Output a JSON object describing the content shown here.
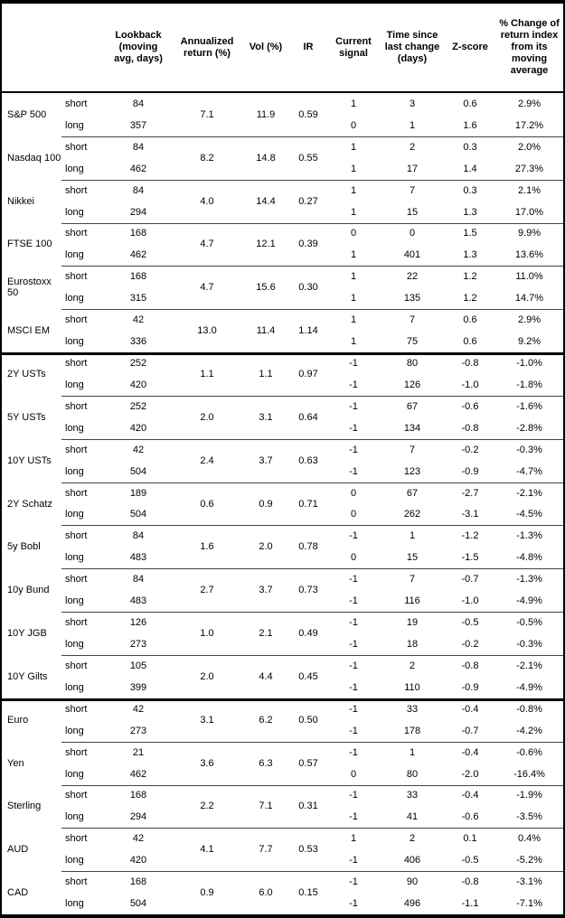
{
  "table": {
    "header": {
      "lookback": "Lookback\n(moving\navg, days)",
      "annualized_return": "Annualized\nreturn (%)",
      "vol": "Vol (%)",
      "ir": "IR",
      "current_signal": "Current\nsignal",
      "time_since": "Time since\nlast change\n(days)",
      "z_score": "Z-score",
      "pct_change": "% Change of\nreturn index\nfrom its\nmoving\naverage"
    },
    "position_labels": {
      "short": "short",
      "long": "long"
    },
    "rows": [
      {
        "name": "S&P 500",
        "section_start": false,
        "annualized_return": "7.1",
        "vol": "11.9",
        "ir": "0.59",
        "short": {
          "lookback": "84",
          "signal": "1",
          "time_since": "3",
          "z_score": "0.6",
          "pct_change": "2.9%"
        },
        "long": {
          "lookback": "357",
          "signal": "0",
          "time_since": "1",
          "z_score": "1.6",
          "pct_change": "17.2%"
        }
      },
      {
        "name": "Nasdaq 100",
        "section_start": false,
        "annualized_return": "8.2",
        "vol": "14.8",
        "ir": "0.55",
        "short": {
          "lookback": "84",
          "signal": "1",
          "time_since": "2",
          "z_score": "0.3",
          "pct_change": "2.0%"
        },
        "long": {
          "lookback": "462",
          "signal": "1",
          "time_since": "17",
          "z_score": "1.4",
          "pct_change": "27.3%"
        }
      },
      {
        "name": "Nikkei",
        "section_start": false,
        "annualized_return": "4.0",
        "vol": "14.4",
        "ir": "0.27",
        "short": {
          "lookback": "84",
          "signal": "1",
          "time_since": "7",
          "z_score": "0.3",
          "pct_change": "2.1%"
        },
        "long": {
          "lookback": "294",
          "signal": "1",
          "time_since": "15",
          "z_score": "1.3",
          "pct_change": "17.0%"
        }
      },
      {
        "name": "FTSE 100",
        "section_start": false,
        "annualized_return": "4.7",
        "vol": "12.1",
        "ir": "0.39",
        "short": {
          "lookback": "168",
          "signal": "0",
          "time_since": "0",
          "z_score": "1.5",
          "pct_change": "9.9%"
        },
        "long": {
          "lookback": "462",
          "signal": "1",
          "time_since": "401",
          "z_score": "1.3",
          "pct_change": "13.6%"
        }
      },
      {
        "name": "Eurostoxx 50",
        "section_start": false,
        "annualized_return": "4.7",
        "vol": "15.6",
        "ir": "0.30",
        "short": {
          "lookback": "168",
          "signal": "1",
          "time_since": "22",
          "z_score": "1.2",
          "pct_change": "11.0%"
        },
        "long": {
          "lookback": "315",
          "signal": "1",
          "time_since": "135",
          "z_score": "1.2",
          "pct_change": "14.7%"
        }
      },
      {
        "name": "MSCI EM",
        "section_start": false,
        "annualized_return": "13.0",
        "vol": "11.4",
        "ir": "1.14",
        "short": {
          "lookback": "42",
          "signal": "1",
          "time_since": "7",
          "z_score": "0.6",
          "pct_change": "2.9%"
        },
        "long": {
          "lookback": "336",
          "signal": "1",
          "time_since": "75",
          "z_score": "0.6",
          "pct_change": "9.2%"
        }
      },
      {
        "name": "2Y USTs",
        "section_start": true,
        "annualized_return": "1.1",
        "vol": "1.1",
        "ir": "0.97",
        "short": {
          "lookback": "252",
          "signal": "-1",
          "time_since": "80",
          "z_score": "-0.8",
          "pct_change": "-1.0%"
        },
        "long": {
          "lookback": "420",
          "signal": "-1",
          "time_since": "126",
          "z_score": "-1.0",
          "pct_change": "-1.8%"
        }
      },
      {
        "name": "5Y USTs",
        "section_start": false,
        "annualized_return": "2.0",
        "vol": "3.1",
        "ir": "0.64",
        "short": {
          "lookback": "252",
          "signal": "-1",
          "time_since": "67",
          "z_score": "-0.6",
          "pct_change": "-1.6%"
        },
        "long": {
          "lookback": "420",
          "signal": "-1",
          "time_since": "134",
          "z_score": "-0.8",
          "pct_change": "-2.8%"
        }
      },
      {
        "name": "10Y USTs",
        "section_start": false,
        "annualized_return": "2.4",
        "vol": "3.7",
        "ir": "0.63",
        "short": {
          "lookback": "42",
          "signal": "-1",
          "time_since": "7",
          "z_score": "-0.2",
          "pct_change": "-0.3%"
        },
        "long": {
          "lookback": "504",
          "signal": "-1",
          "time_since": "123",
          "z_score": "-0.9",
          "pct_change": "-4.7%"
        }
      },
      {
        "name": "2Y Schatz",
        "section_start": false,
        "annualized_return": "0.6",
        "vol": "0.9",
        "ir": "0.71",
        "short": {
          "lookback": "189",
          "signal": "0",
          "time_since": "67",
          "z_score": "-2.7",
          "pct_change": "-2.1%"
        },
        "long": {
          "lookback": "504",
          "signal": "0",
          "time_since": "262",
          "z_score": "-3.1",
          "pct_change": "-4.5%"
        }
      },
      {
        "name": "5y Bobl",
        "section_start": false,
        "annualized_return": "1.6",
        "vol": "2.0",
        "ir": "0.78",
        "short": {
          "lookback": "84",
          "signal": "-1",
          "time_since": "1",
          "z_score": "-1.2",
          "pct_change": "-1.3%"
        },
        "long": {
          "lookback": "483",
          "signal": "0",
          "time_since": "15",
          "z_score": "-1.5",
          "pct_change": "-4.8%"
        }
      },
      {
        "name": "10y Bund",
        "section_start": false,
        "annualized_return": "2.7",
        "vol": "3.7",
        "ir": "0.73",
        "short": {
          "lookback": "84",
          "signal": "-1",
          "time_since": "7",
          "z_score": "-0.7",
          "pct_change": "-1.3%"
        },
        "long": {
          "lookback": "483",
          "signal": "-1",
          "time_since": "116",
          "z_score": "-1.0",
          "pct_change": "-4.9%"
        }
      },
      {
        "name": "10Y JGB",
        "section_start": false,
        "annualized_return": "1.0",
        "vol": "2.1",
        "ir": "0.49",
        "short": {
          "lookback": "126",
          "signal": "-1",
          "time_since": "19",
          "z_score": "-0.5",
          "pct_change": "-0.5%"
        },
        "long": {
          "lookback": "273",
          "signal": "-1",
          "time_since": "18",
          "z_score": "-0.2",
          "pct_change": "-0.3%"
        }
      },
      {
        "name": "10Y Gilts",
        "section_start": false,
        "annualized_return": "2.0",
        "vol": "4.4",
        "ir": "0.45",
        "short": {
          "lookback": "105",
          "signal": "-1",
          "time_since": "2",
          "z_score": "-0.8",
          "pct_change": "-2.1%"
        },
        "long": {
          "lookback": "399",
          "signal": "-1",
          "time_since": "110",
          "z_score": "-0.9",
          "pct_change": "-4.9%"
        }
      },
      {
        "name": "Euro",
        "section_start": true,
        "annualized_return": "3.1",
        "vol": "6.2",
        "ir": "0.50",
        "short": {
          "lookback": "42",
          "signal": "-1",
          "time_since": "33",
          "z_score": "-0.4",
          "pct_change": "-0.8%"
        },
        "long": {
          "lookback": "273",
          "signal": "-1",
          "time_since": "178",
          "z_score": "-0.7",
          "pct_change": "-4.2%"
        }
      },
      {
        "name": "Yen",
        "section_start": false,
        "annualized_return": "3.6",
        "vol": "6.3",
        "ir": "0.57",
        "short": {
          "lookback": "21",
          "signal": "-1",
          "time_since": "1",
          "z_score": "-0.4",
          "pct_change": "-0.6%"
        },
        "long": {
          "lookback": "462",
          "signal": "0",
          "time_since": "80",
          "z_score": "-2.0",
          "pct_change": "-16.4%"
        }
      },
      {
        "name": "Sterling",
        "section_start": false,
        "annualized_return": "2.2",
        "vol": "7.1",
        "ir": "0.31",
        "short": {
          "lookback": "168",
          "signal": "-1",
          "time_since": "33",
          "z_score": "-0.4",
          "pct_change": "-1.9%"
        },
        "long": {
          "lookback": "294",
          "signal": "-1",
          "time_since": "41",
          "z_score": "-0.6",
          "pct_change": "-3.5%"
        }
      },
      {
        "name": "AUD",
        "section_start": false,
        "annualized_return": "4.1",
        "vol": "7.7",
        "ir": "0.53",
        "short": {
          "lookback": "42",
          "signal": "1",
          "time_since": "2",
          "z_score": "0.1",
          "pct_change": "0.4%"
        },
        "long": {
          "lookback": "420",
          "signal": "-1",
          "time_since": "406",
          "z_score": "-0.5",
          "pct_change": "-5.2%"
        }
      },
      {
        "name": "CAD",
        "section_start": false,
        "annualized_return": "0.9",
        "vol": "6.0",
        "ir": "0.15",
        "short": {
          "lookback": "168",
          "signal": "-1",
          "time_since": "90",
          "z_score": "-0.8",
          "pct_change": "-3.1%"
        },
        "long": {
          "lookback": "504",
          "signal": "-1",
          "time_since": "496",
          "z_score": "-1.1",
          "pct_change": "-7.1%"
        }
      }
    ]
  }
}
